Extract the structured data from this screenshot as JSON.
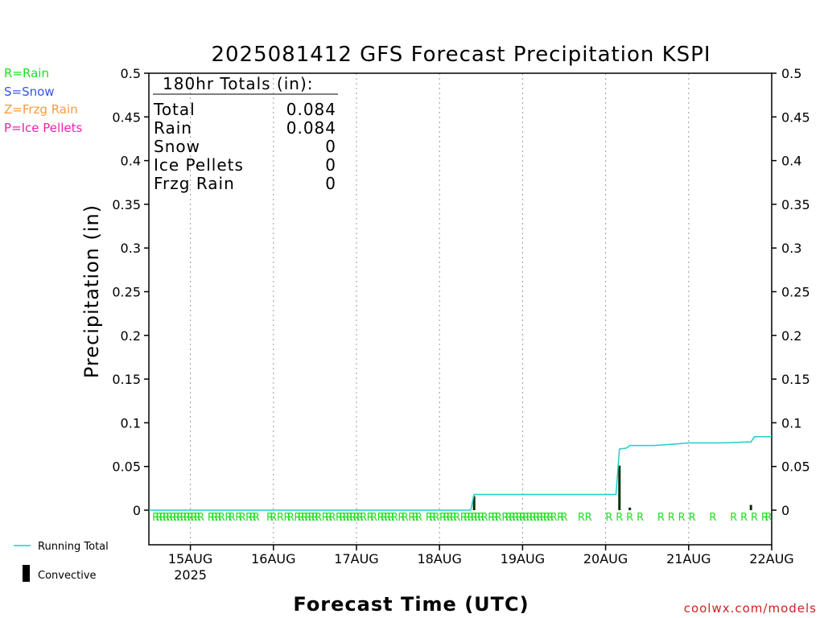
{
  "legend_keys": [
    {
      "label": "R=Rain",
      "color": "#22dd22"
    },
    {
      "label": "S=Snow",
      "color": "#3355ee"
    },
    {
      "label": "Z=Frzg Rain",
      "color": "#ff9933"
    },
    {
      "label": "P=Ice Pellets",
      "color": "#ee22aa"
    }
  ],
  "totals_box": {
    "header": "180hr Totals (in):",
    "rows": [
      {
        "label": "Total",
        "value": "0.084"
      },
      {
        "label": "Rain",
        "value": "0.084"
      },
      {
        "label": "Snow",
        "value": "0"
      },
      {
        "label": "Ice Pellets",
        "value": "0"
      },
      {
        "label": "Frzg Rain",
        "value": "0"
      }
    ]
  },
  "bottom_legend": {
    "running_total": "Running Total",
    "convective": "Convective"
  },
  "watermark": "coolwx.com/models",
  "colors": {
    "running_total": "#22cccc",
    "convective": "#003300",
    "rain_letters": "#22dd22"
  },
  "chart_data": {
    "type": "line",
    "title": "2025081412 GFS Forecast Precipitation KSPI",
    "xlabel": "Forecast Time (UTC)",
    "ylabel": "Precipitation (in)",
    "ylim": [
      0,
      0.5
    ],
    "y_ticks": [
      "0",
      "0.05",
      "0.1",
      "0.15",
      "0.2",
      "0.25",
      "0.3",
      "0.35",
      "0.4",
      "0.45",
      "0.5"
    ],
    "x_range_hours": [
      0,
      180
    ],
    "x_ticks": [
      {
        "hour": 12,
        "label": "15AUG",
        "sublabel": "2025"
      },
      {
        "hour": 36,
        "label": "16AUG"
      },
      {
        "hour": 60,
        "label": "17AUG"
      },
      {
        "hour": 84,
        "label": "18AUG"
      },
      {
        "hour": 108,
        "label": "19AUG"
      },
      {
        "hour": 132,
        "label": "20AUG"
      },
      {
        "hour": 156,
        "label": "21AUG"
      },
      {
        "hour": 180,
        "label": "22AUG"
      }
    ],
    "grid": true,
    "series": [
      {
        "name": "Running Total",
        "points": [
          [
            0,
            0
          ],
          [
            93,
            0
          ],
          [
            94,
            0.018
          ],
          [
            135,
            0.018
          ],
          [
            136,
            0.07
          ],
          [
            138,
            0.071
          ],
          [
            139,
            0.074
          ],
          [
            146,
            0.074
          ],
          [
            150,
            0.075
          ],
          [
            153,
            0.076
          ],
          [
            156,
            0.077
          ],
          [
            160,
            0.077
          ],
          [
            166,
            0.077
          ],
          [
            173,
            0.078
          ],
          [
            174,
            0.078
          ],
          [
            175,
            0.084
          ],
          [
            180,
            0.084
          ]
        ]
      },
      {
        "name": "Convective",
        "bars": [
          [
            94,
            0.016
          ],
          [
            136,
            0.051
          ],
          [
            139,
            0.003
          ],
          [
            174,
            0.006
          ]
        ]
      }
    ],
    "ptype_hours": [
      2,
      3,
      4,
      5,
      6,
      7,
      8,
      9,
      10,
      11,
      12,
      13,
      14,
      15,
      18,
      19,
      20,
      21,
      23,
      24,
      26,
      27,
      29,
      30,
      31,
      35,
      36,
      38,
      40,
      41,
      43,
      44,
      45,
      46,
      47,
      48,
      49,
      51,
      52,
      53,
      55,
      56,
      57,
      58,
      59,
      60,
      61,
      62,
      64,
      65,
      67,
      68,
      69,
      70,
      71,
      73,
      74,
      76,
      77,
      78,
      81,
      82,
      83,
      85,
      86,
      87,
      88,
      89,
      91,
      92,
      93,
      94,
      95,
      96,
      97,
      99,
      100,
      101,
      103,
      104,
      105,
      106,
      107,
      108,
      109,
      110,
      111,
      112,
      113,
      114,
      115,
      116,
      117,
      119,
      120,
      125,
      127,
      133,
      136,
      139,
      142,
      148,
      151,
      154,
      157,
      163,
      169,
      172,
      175,
      178,
      180
    ],
    "ptype_letter": "R"
  }
}
